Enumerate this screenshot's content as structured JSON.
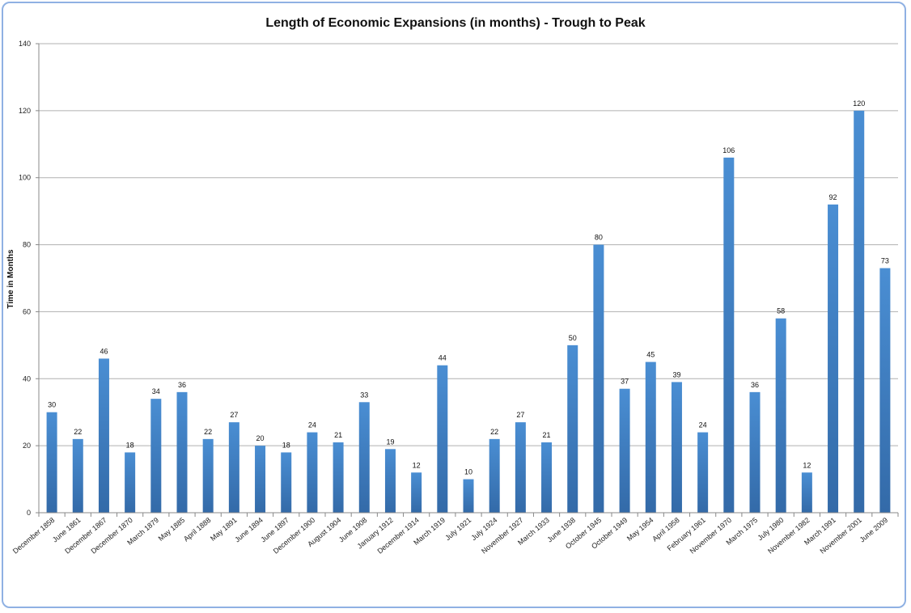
{
  "chart_data": {
    "type": "bar",
    "title": "Length of Economic Expansions (in months) - Trough to Peak",
    "xlabel": "",
    "ylabel": "Time in Months",
    "ylim": [
      0,
      140
    ],
    "yticks": [
      0,
      20,
      40,
      60,
      80,
      100,
      120,
      140
    ],
    "grid": true,
    "legend": "none",
    "bar_color": "#4a8ed3",
    "bar_color_dark": "#336aa8",
    "categories": [
      "December 1858",
      "June 1861",
      "December 1867",
      "December 1870",
      "March 1879",
      "May 1885",
      "April 1888",
      "May 1891",
      "June 1894",
      "June 1897",
      "December 1900",
      "August 1904",
      "June 1908",
      "January 1912",
      "December 1914",
      "March 1919",
      "July 1921",
      "July 1924",
      "November 1927",
      "March 1933",
      "June 1938",
      "October 1945",
      "October 1949",
      "May 1954",
      "April 1958",
      "February 1961",
      "November 1970",
      "March 1975",
      "July 1980",
      "November 1982",
      "March 1991",
      "November 2001",
      "June 2009"
    ],
    "values": [
      30,
      22,
      46,
      18,
      34,
      36,
      22,
      27,
      20,
      18,
      24,
      21,
      33,
      19,
      12,
      44,
      10,
      22,
      27,
      21,
      50,
      80,
      37,
      45,
      39,
      24,
      106,
      36,
      58,
      12,
      92,
      120,
      73
    ]
  }
}
